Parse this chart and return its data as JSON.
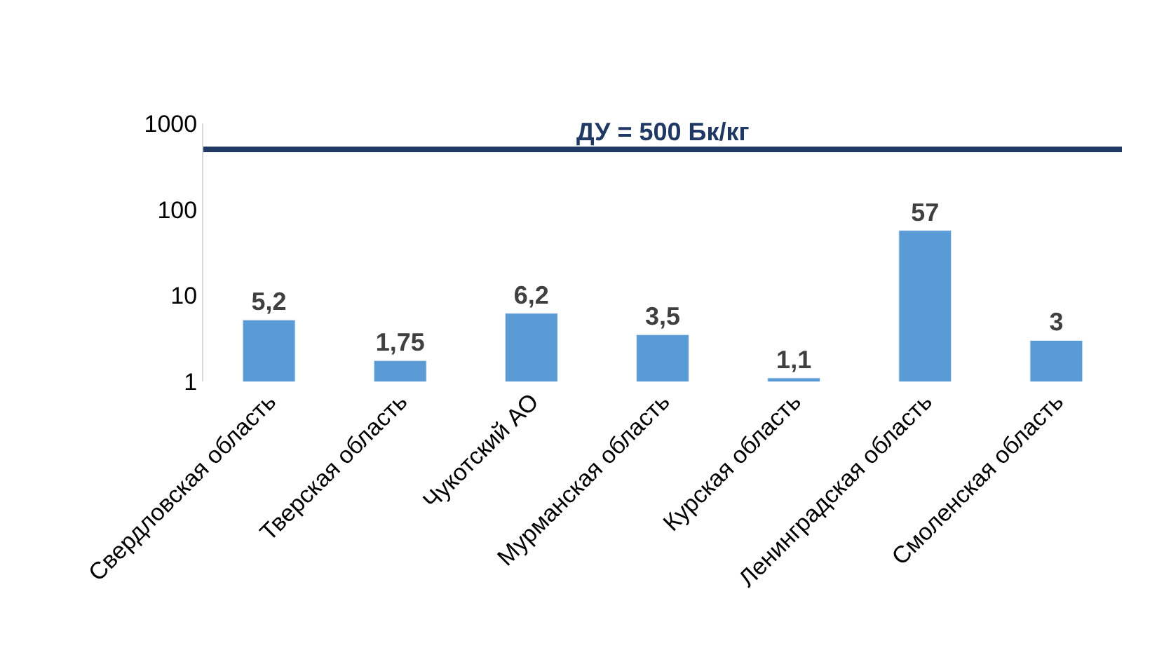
{
  "chart_data": {
    "type": "bar",
    "categories": [
      "Свердловская область",
      "Тверская область",
      "Чукотский АО",
      "Мурманская область",
      "Курская область",
      "Ленинградская область",
      "Смоленская область"
    ],
    "values": [
      5.2,
      1.75,
      6.2,
      3.5,
      1.1,
      57,
      3
    ],
    "value_labels": [
      "5,2",
      "1,75",
      "6,2",
      "3,5",
      "1,1",
      "57",
      "3"
    ],
    "color": "#5b9bd5",
    "log": true,
    "ylim": [
      1,
      1000
    ],
    "yticks": [
      1,
      10,
      100,
      1000
    ],
    "ref_lines": [
      {
        "axis": "y",
        "value": 500,
        "label": "ДУ = 500 Бк/кг",
        "color": "#1f3864"
      }
    ]
  }
}
